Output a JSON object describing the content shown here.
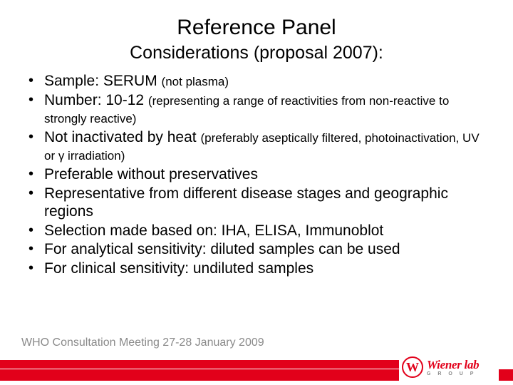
{
  "title": "Reference Panel",
  "subtitle": "Considerations (proposal 2007):",
  "bullets": [
    {
      "main": "Sample: SERUM ",
      "small": "(not plasma)"
    },
    {
      "main": "Number: 10-12 ",
      "small": "(representing a range of reactivities from non-reactive to strongly reactive)"
    },
    {
      "main": "Not inactivated by heat ",
      "small": "(preferably aseptically filtered, photoinactivation, UV or γ irradiation)"
    },
    {
      "main": "Preferable without preservatives",
      "small": ""
    },
    {
      "main": "Representative from different disease stages and geographic regions",
      "small": ""
    },
    {
      "main": "Selection made based on: IHA, ELISA, Immunoblot",
      "small": ""
    },
    {
      "main": "For analytical sensitivity: diluted samples can be used",
      "small": ""
    },
    {
      "main": "For clinical sensitivity: undiluted samples",
      "small": ""
    }
  ],
  "footer": "WHO Consultation Meeting 27-28 January 2009",
  "logo": {
    "glyph": "W",
    "name": "Wiener lab",
    "sub": "G R O U P"
  },
  "colors": {
    "brand": "#e2001a",
    "footer_text": "#8a8a8a",
    "background": "#ffffff"
  },
  "typography": {
    "title_size": 30,
    "subtitle_size": 25,
    "bullet_size": 21,
    "small_size": 17,
    "footer_size": 16
  }
}
